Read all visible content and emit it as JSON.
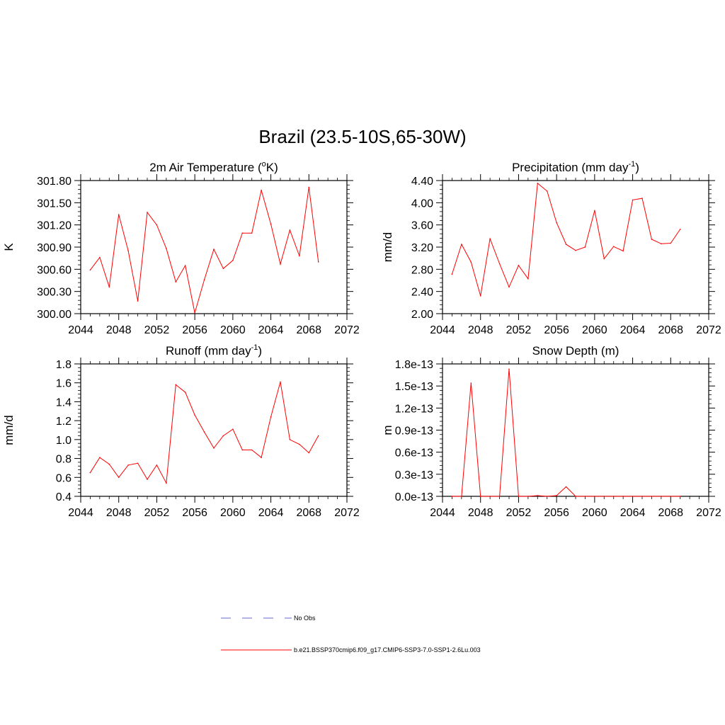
{
  "figure": {
    "title": "Brazil (23.5-10S,65-30W)",
    "line_color": "#ff0000",
    "obs_color": "#9999dd"
  },
  "legend": {
    "obs_label": "No Obs",
    "model_label": "b.e21.BSSP370cmip6.f09_g17.CMIP6-SSP3-7.0-SSP1-2.6Lu.003"
  },
  "chart_data": [
    {
      "type": "line",
      "title": "2m Air Temperature (",
      "title_sup": "o",
      "title_end": "K)",
      "ylabel": "K",
      "xlim": [
        2044,
        2072
      ],
      "ylim": [
        300.0,
        301.8
      ],
      "xticks": [
        2044,
        2048,
        2052,
        2056,
        2060,
        2064,
        2068,
        2072
      ],
      "yticks": [
        300.0,
        300.3,
        300.6,
        300.9,
        301.2,
        301.5,
        301.8
      ],
      "ytick_labels": [
        "300.00",
        "300.30",
        "300.60",
        "300.90",
        "301.20",
        "301.50",
        "301.80"
      ],
      "x": [
        2045,
        2046,
        2047,
        2048,
        2049,
        2050,
        2051,
        2052,
        2053,
        2054,
        2055,
        2056,
        2057,
        2058,
        2059,
        2060,
        2061,
        2062,
        2063,
        2064,
        2065,
        2066,
        2067,
        2068,
        2069
      ],
      "y": [
        300.59,
        300.76,
        300.36,
        301.34,
        300.85,
        300.17,
        301.37,
        301.2,
        300.88,
        300.43,
        300.65,
        300.01,
        300.46,
        300.87,
        300.61,
        300.72,
        301.09,
        301.09,
        301.67,
        301.21,
        300.67,
        301.13,
        300.78,
        301.71,
        300.7
      ]
    },
    {
      "type": "line",
      "title": "Precipitation (mm day",
      "title_sup": "-1",
      "title_end": ")",
      "ylabel": "mm/d",
      "xlim": [
        2044,
        2072
      ],
      "ylim": [
        2.0,
        4.4
      ],
      "xticks": [
        2044,
        2048,
        2052,
        2056,
        2060,
        2064,
        2068,
        2072
      ],
      "yticks": [
        2.0,
        2.4,
        2.8,
        3.2,
        3.6,
        4.0,
        4.4
      ],
      "ytick_labels": [
        "2.00",
        "2.40",
        "2.80",
        "3.20",
        "3.60",
        "4.00",
        "4.40"
      ],
      "x": [
        2045,
        2046,
        2047,
        2048,
        2049,
        2050,
        2051,
        2052,
        2053,
        2054,
        2055,
        2056,
        2057,
        2058,
        2059,
        2060,
        2061,
        2062,
        2063,
        2064,
        2065,
        2066,
        2067,
        2068,
        2069
      ],
      "y": [
        2.71,
        3.25,
        2.93,
        2.32,
        3.35,
        2.9,
        2.48,
        2.87,
        2.63,
        4.35,
        4.21,
        3.64,
        3.25,
        3.14,
        3.2,
        3.86,
        2.99,
        3.21,
        3.13,
        4.05,
        4.08,
        3.34,
        3.26,
        3.27,
        3.52
      ]
    },
    {
      "type": "line",
      "title": "Runoff (mm day",
      "title_sup": "-1",
      "title_end": ")",
      "ylabel": "mm/d",
      "xlim": [
        2044,
        2072
      ],
      "ylim": [
        0.4,
        1.8
      ],
      "xticks": [
        2044,
        2048,
        2052,
        2056,
        2060,
        2064,
        2068,
        2072
      ],
      "yticks": [
        0.4,
        0.6,
        0.8,
        1.0,
        1.2,
        1.4,
        1.6,
        1.8
      ],
      "ytick_labels": [
        "0.4",
        "0.6",
        "0.8",
        "1.0",
        "1.2",
        "1.4",
        "1.6",
        "1.8"
      ],
      "x": [
        2045,
        2046,
        2047,
        2048,
        2049,
        2050,
        2051,
        2052,
        2053,
        2054,
        2055,
        2056,
        2057,
        2058,
        2059,
        2060,
        2061,
        2062,
        2063,
        2064,
        2065,
        2066,
        2067,
        2068,
        2069
      ],
      "y": [
        0.65,
        0.81,
        0.74,
        0.6,
        0.73,
        0.75,
        0.58,
        0.73,
        0.54,
        1.58,
        1.5,
        1.26,
        1.08,
        0.91,
        1.04,
        1.11,
        0.89,
        0.89,
        0.81,
        1.24,
        1.61,
        1.0,
        0.95,
        0.86,
        1.04
      ]
    },
    {
      "type": "line",
      "title": "Snow Depth (m)",
      "title_sup": "",
      "title_end": "",
      "ylabel": "m",
      "xlim": [
        2044,
        2072
      ],
      "ylim": [
        0.0,
        1.8
      ],
      "xticks": [
        2044,
        2048,
        2052,
        2056,
        2060,
        2064,
        2068,
        2072
      ],
      "yticks": [
        0.0,
        0.3,
        0.6,
        0.9,
        1.2,
        1.5,
        1.8
      ],
      "ytick_labels": [
        "0.0e-13",
        "0.3e-13",
        "0.6e-13",
        "0.9e-13",
        "1.2e-13",
        "1.5e-13",
        "1.8e-13"
      ],
      "y_scale_note": "values in units of 1e-13 m",
      "x": [
        2045,
        2046,
        2047,
        2048,
        2049,
        2050,
        2051,
        2052,
        2053,
        2054,
        2055,
        2056,
        2057,
        2058,
        2059,
        2060,
        2061,
        2062,
        2063,
        2064,
        2065,
        2066,
        2067,
        2068,
        2069
      ],
      "y": [
        0.0,
        0.0,
        1.54,
        0.0,
        0.0,
        0.0,
        1.73,
        0.0,
        0.0,
        0.01,
        0.0,
        0.01,
        0.13,
        0.0,
        0.0,
        0.0,
        0.0,
        0.0,
        0.0,
        0.0,
        0.0,
        0.0,
        0.0,
        0.0,
        0.0
      ]
    }
  ]
}
